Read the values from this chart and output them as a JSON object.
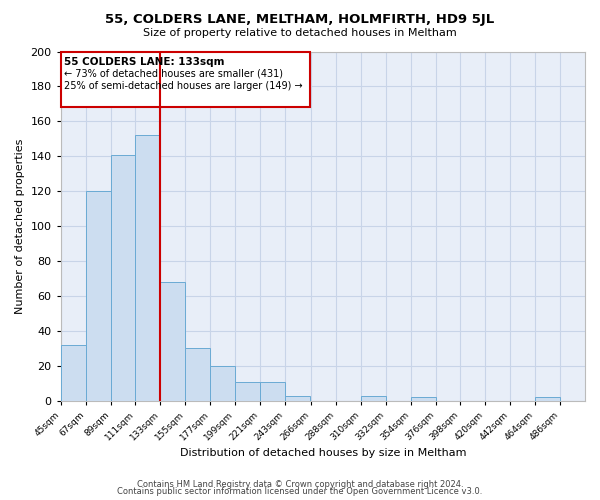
{
  "title1": "55, COLDERS LANE, MELTHAM, HOLMFIRTH, HD9 5JL",
  "title2": "Size of property relative to detached houses in Meltham",
  "xlabel": "Distribution of detached houses by size in Meltham",
  "ylabel": "Number of detached properties",
  "bin_labels": [
    "45sqm",
    "67sqm",
    "89sqm",
    "111sqm",
    "133sqm",
    "155sqm",
    "177sqm",
    "199sqm",
    "221sqm",
    "243sqm",
    "266sqm",
    "288sqm",
    "310sqm",
    "332sqm",
    "354sqm",
    "376sqm",
    "398sqm",
    "420sqm",
    "442sqm",
    "464sqm",
    "486sqm"
  ],
  "bar_values": [
    32,
    120,
    141,
    152,
    68,
    30,
    20,
    11,
    11,
    3,
    0,
    0,
    3,
    0,
    2,
    0,
    0,
    0,
    0,
    2,
    0
  ],
  "bin_edges": [
    45,
    67,
    89,
    111,
    133,
    155,
    177,
    199,
    221,
    243,
    266,
    288,
    310,
    332,
    354,
    376,
    398,
    420,
    442,
    464,
    486
  ],
  "property_size": 133,
  "annotation_title": "55 COLDERS LANE: 133sqm",
  "annotation_line1": "← 73% of detached houses are smaller (431)",
  "annotation_line2": "25% of semi-detached houses are larger (149) →",
  "bar_color": "#ccddf0",
  "bar_edge_color": "#6aaad4",
  "vline_color": "#cc0000",
  "annotation_box_edge": "#cc0000",
  "background_color": "#ffffff",
  "plot_bg_color": "#e8eef8",
  "grid_color": "#c8d4e8",
  "ylim": [
    0,
    200
  ],
  "yticks": [
    0,
    20,
    40,
    60,
    80,
    100,
    120,
    140,
    160,
    180,
    200
  ],
  "footer1": "Contains HM Land Registry data © Crown copyright and database right 2024.",
  "footer2": "Contains public sector information licensed under the Open Government Licence v3.0."
}
